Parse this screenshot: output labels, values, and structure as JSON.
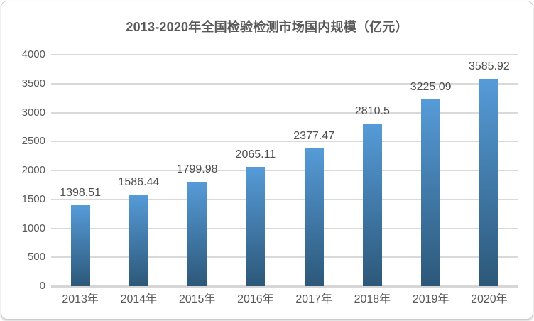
{
  "chart_data": {
    "type": "bar",
    "title": "2013-2020年全国检验检测市场国内规模（亿元）",
    "categories": [
      "2013年",
      "2014年",
      "2015年",
      "2016年",
      "2017年",
      "2018年",
      "2019年",
      "2020年"
    ],
    "values": [
      1398.51,
      1586.44,
      1799.98,
      2065.11,
      2377.47,
      2810.5,
      3225.09,
      3585.92
    ],
    "value_labels": [
      "1398.51",
      "1586.44",
      "1799.98",
      "2065.11",
      "2377.47",
      "2810.5",
      "3225.09",
      "3585.92"
    ],
    "xlabel": "",
    "ylabel": "",
    "ylim": [
      0,
      4000
    ],
    "ytick_step": 500,
    "yticks": [
      0,
      500,
      1000,
      1500,
      2000,
      2500,
      3000,
      3500,
      4000
    ],
    "grid": true,
    "legend_position": "none",
    "data_labels": true
  },
  "colors": {
    "bar_gradient_top": "#569bd8",
    "bar_gradient_bottom": "#2c5879",
    "gridline": "#d9d9d9",
    "baseline": "#d6d6d6",
    "tick_label": "#595959",
    "value_label": "#4d4d4d",
    "title": "#595959",
    "card_border": "#cccccc",
    "background": "#ffffff"
  }
}
